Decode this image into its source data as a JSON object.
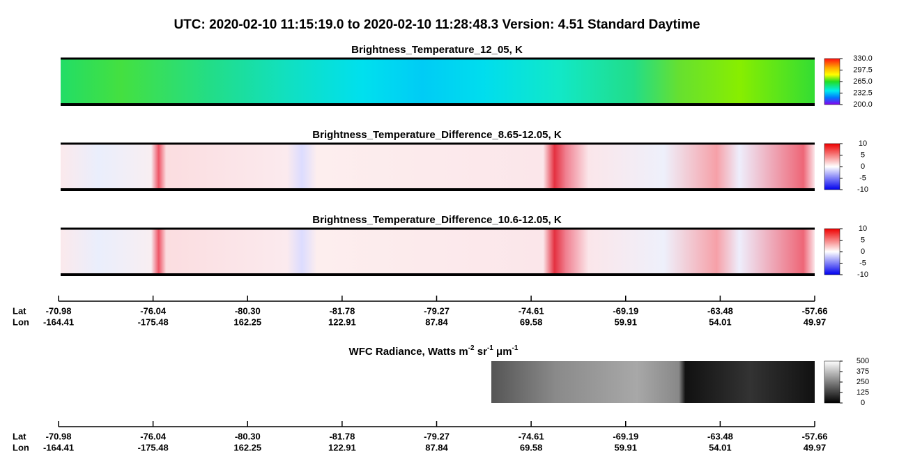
{
  "title": "UTC:  2020-02-10   11:15:19.0  to  2020-02-10   11:28:48.3    Version: 4.51  Standard Daytime",
  "panels": [
    {
      "title": "Brightness_Temperature_12_05, K",
      "colorbar": [
        "330.0",
        "297.5",
        "265.0",
        "232.5",
        "200.0"
      ]
    },
    {
      "title": "Brightness_Temperature_Difference_8.65-12.05, K",
      "colorbar": [
        "10",
        "5",
        "0",
        "-5",
        "-10"
      ]
    },
    {
      "title": "Brightness_Temperature_Difference_10.6-12.05, K",
      "colorbar": [
        "10",
        "5",
        "0",
        "-5",
        "-10"
      ]
    },
    {
      "title_parts": [
        "WFC Radiance, Watts m",
        "-2",
        " sr",
        "-1",
        " μm",
        "-1"
      ],
      "colorbar": [
        "500",
        "375",
        "250",
        "125",
        "0"
      ]
    }
  ],
  "axes": [
    {
      "lat_label": "Lat",
      "lon_label": "Lon",
      "lat": [
        "-70.98",
        "-76.04",
        "-80.30",
        "-81.78",
        "-79.27",
        "-74.61",
        "-69.19",
        "-63.48",
        "-57.66"
      ],
      "lon": [
        "-164.41",
        "-175.48",
        "162.25",
        "122.91",
        "87.84",
        "69.58",
        "59.91",
        "54.01",
        "49.97"
      ]
    },
    {
      "lat_label": "Lat",
      "lon_label": "Lon",
      "lat": [
        "-70.98",
        "-76.04",
        "-80.30",
        "-81.78",
        "-79.27",
        "-74.61",
        "-69.19",
        "-63.48",
        "-57.66"
      ],
      "lon": [
        "-164.41",
        "-175.48",
        "162.25",
        "122.91",
        "87.84",
        "69.58",
        "59.91",
        "54.01",
        "49.97"
      ]
    }
  ]
}
